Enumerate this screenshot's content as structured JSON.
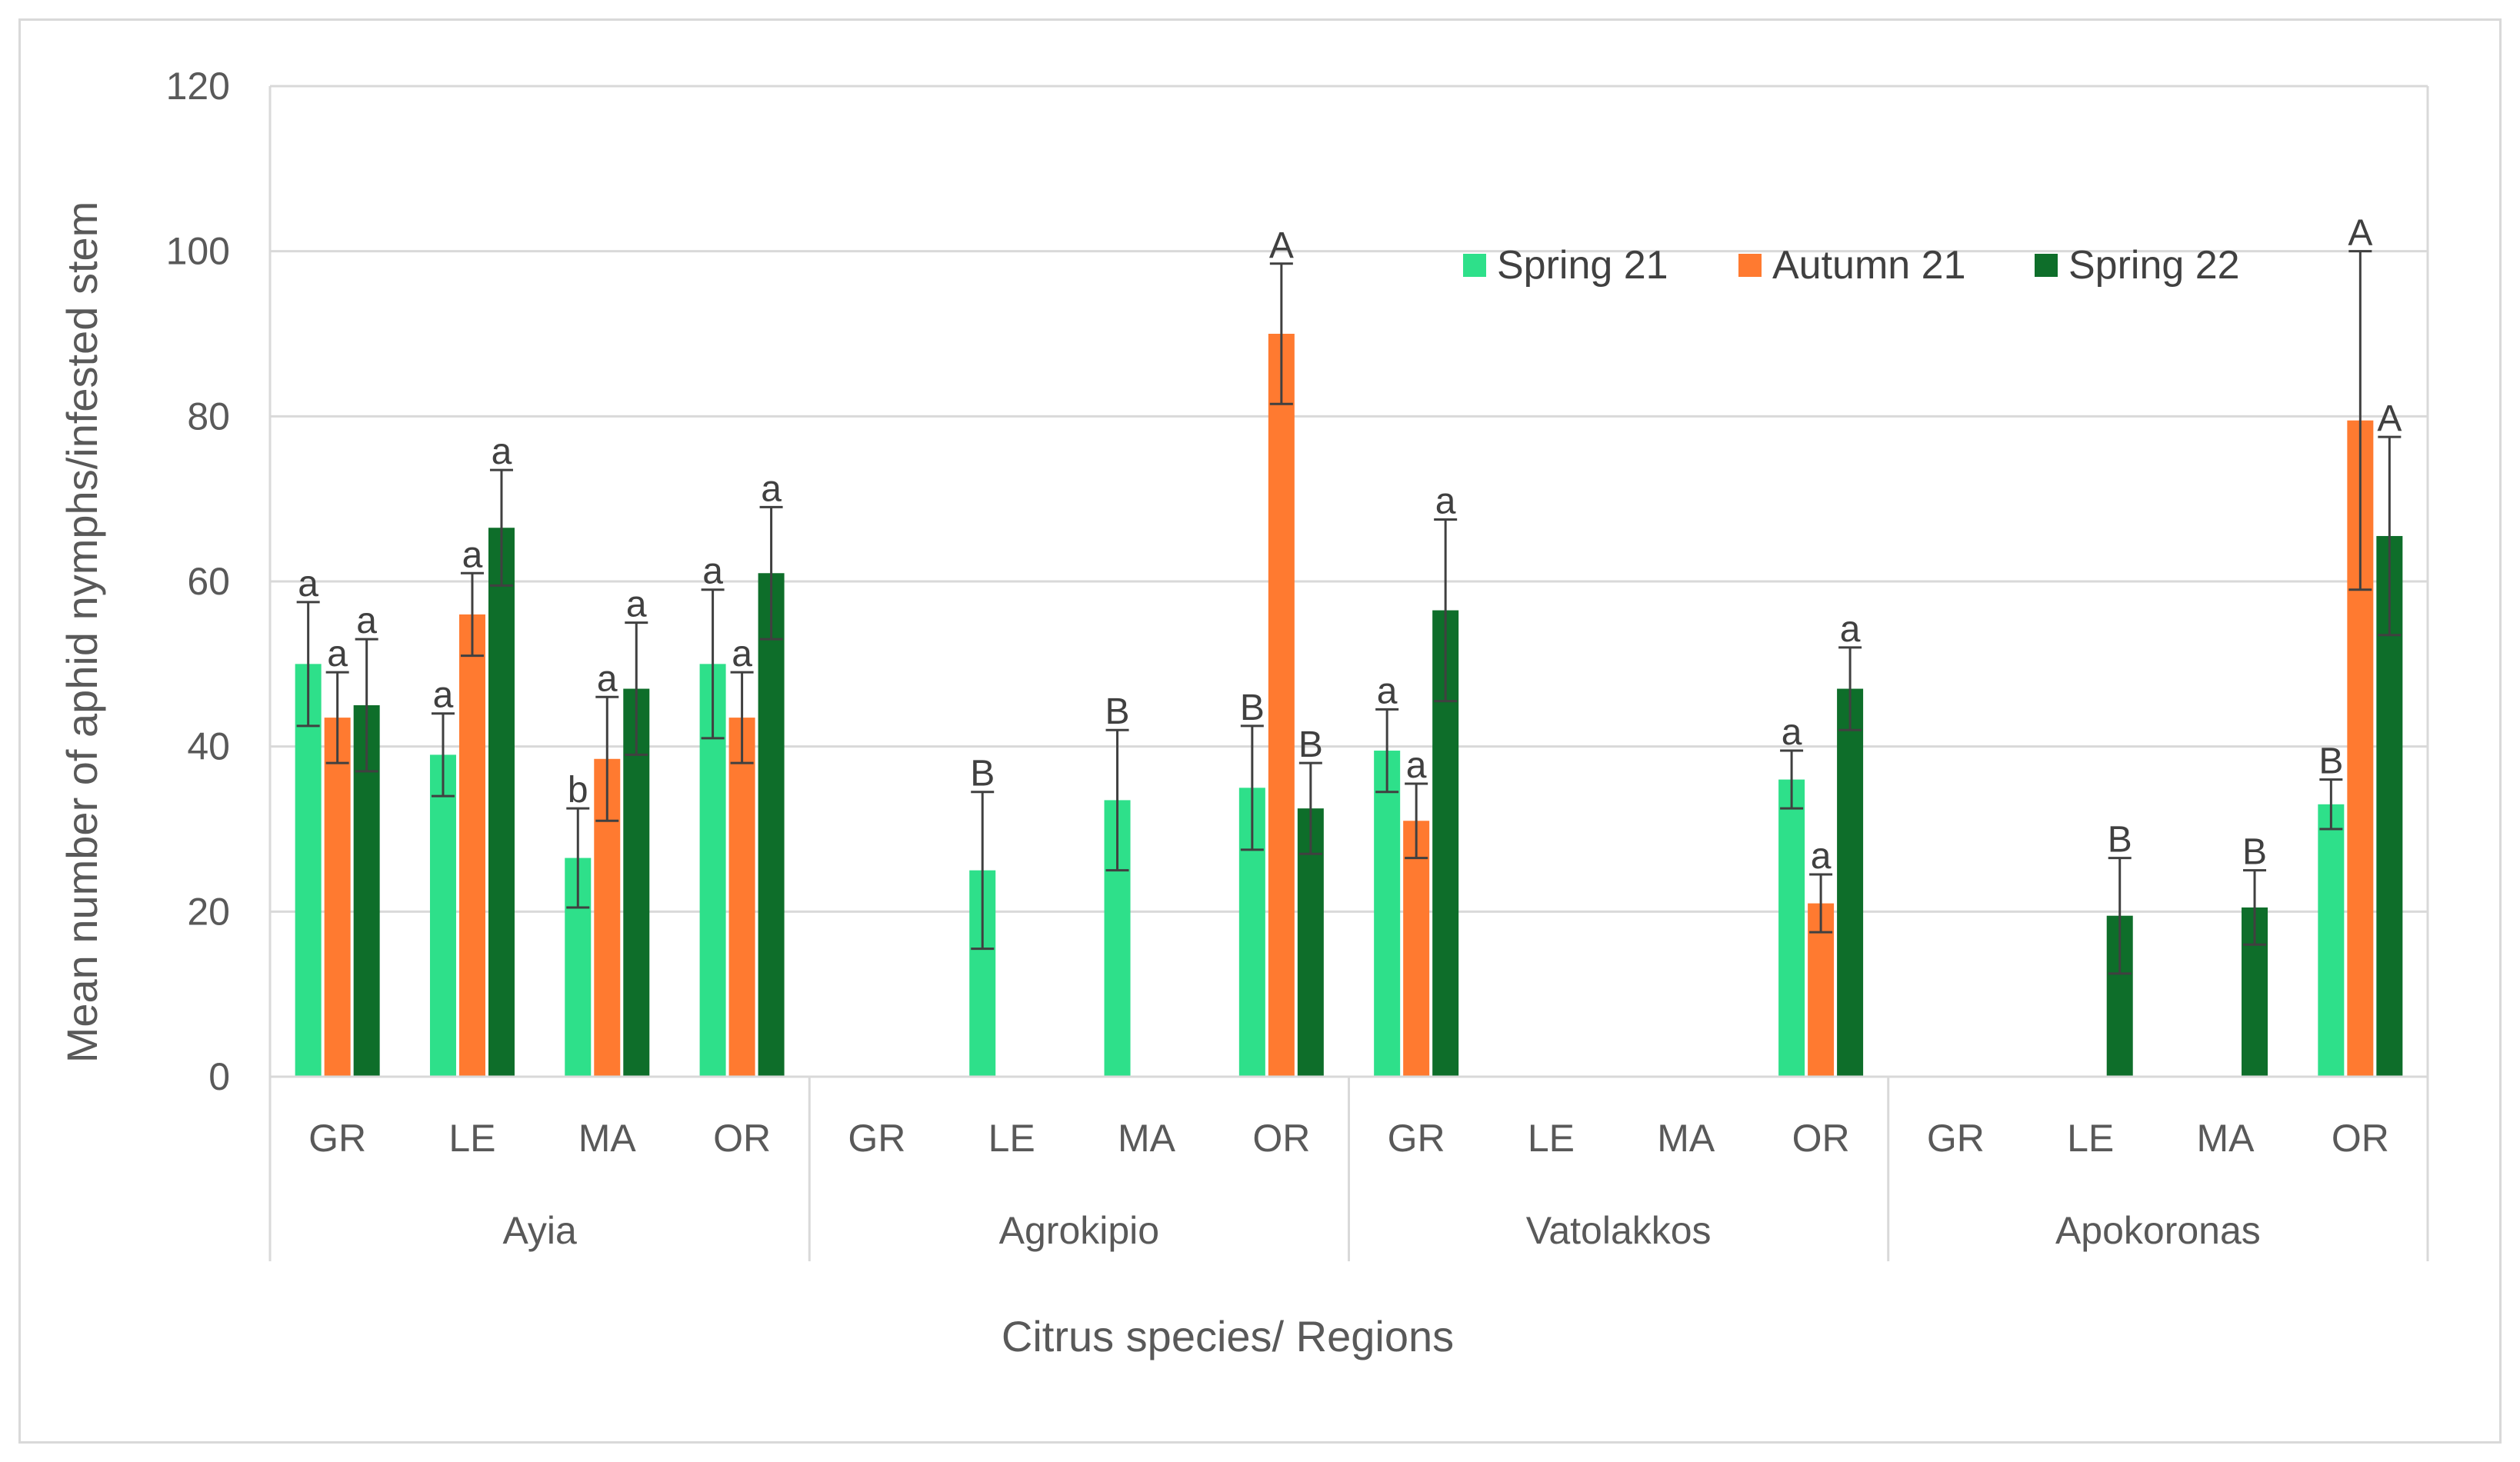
{
  "chart_data": {
    "type": "bar",
    "title": "",
    "ylabel": "Mean number of aphid nymphs/infested stem",
    "xlabel": "Citrus species/ Regions",
    "ylim": [
      0,
      120
    ],
    "yticks": [
      "0",
      "20",
      "40",
      "60",
      "80",
      "100",
      "120"
    ],
    "legend_position": "top-right",
    "regions": [
      "Ayia",
      "Agrokipio",
      "Vatolakkos",
      "Apokoronas"
    ],
    "species": [
      "GR",
      "LE",
      "MA",
      "OR"
    ],
    "series": [
      {
        "name": "Spring  21",
        "color": "#2ee08a",
        "values": [
          50,
          39,
          26.5,
          50,
          0,
          25,
          33.5,
          35,
          39.5,
          0,
          0,
          36,
          0,
          0,
          0,
          33
        ],
        "errors": [
          7.5,
          5,
          6,
          9,
          0,
          9.5,
          8.5,
          7.5,
          5,
          0,
          0,
          3.5,
          0,
          0,
          0,
          3
        ],
        "labels": [
          "a",
          "a",
          "b",
          "a",
          "",
          "B",
          "B",
          "B",
          "a",
          "",
          "",
          "a",
          "",
          "",
          "",
          "B"
        ]
      },
      {
        "name": "Autumn 21",
        "color": "#ff7a30",
        "values": [
          43.5,
          56,
          38.5,
          43.5,
          0,
          0,
          0,
          90,
          31,
          0,
          0,
          21,
          0,
          0,
          0,
          79.5
        ],
        "errors": [
          5.5,
          5,
          7.5,
          5.5,
          0,
          0,
          0,
          8.5,
          4.5,
          0,
          0,
          3.5,
          0,
          0,
          0,
          20.5
        ],
        "labels": [
          "a",
          "a",
          "a",
          "a",
          "",
          "",
          "",
          "A",
          "a",
          "",
          "",
          "a",
          "",
          "",
          "",
          "A"
        ]
      },
      {
        "name": "Spring 22",
        "color": "#0e6e2a",
        "values": [
          45,
          66.5,
          47,
          61,
          0,
          0,
          0,
          32.5,
          56.5,
          0,
          0,
          47,
          0,
          19.5,
          20.5,
          65.5
        ],
        "errors": [
          8,
          7,
          8,
          8,
          0,
          0,
          0,
          5.5,
          11,
          0,
          0,
          5,
          0,
          7,
          4.5,
          12
        ],
        "labels": [
          "a",
          "a",
          "a",
          "a",
          "",
          "",
          "",
          "B",
          "a",
          "",
          "",
          "a",
          "",
          "B",
          "B",
          "A"
        ]
      }
    ]
  }
}
